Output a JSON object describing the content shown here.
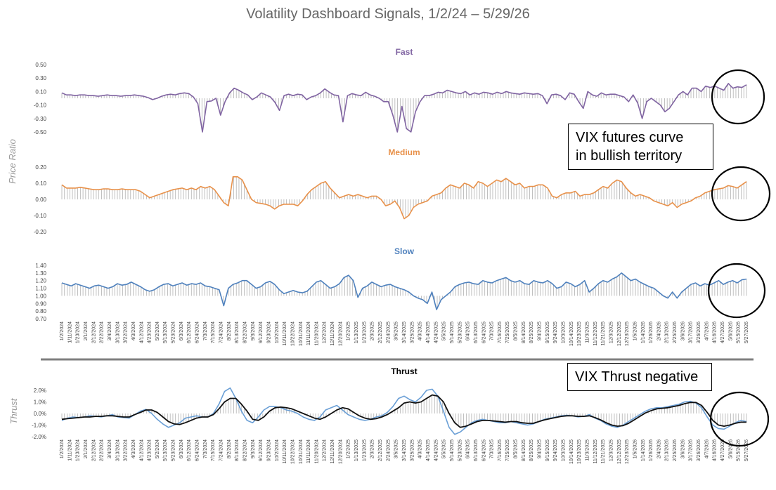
{
  "title": "Volatility Dashboard Signals, 1/2/24 – 5/29/26",
  "y_axis_labels": {
    "upper": "Price Ratio",
    "lower": "Thrust"
  },
  "callouts": {
    "upper": [
      "VIX  futures  curve",
      "in bullish territory"
    ],
    "lower": "VIX Thrust negative"
  },
  "colors": {
    "fast": "#8064a2",
    "medium": "#e8914a",
    "slow": "#4f81bd",
    "thrust_blue": "#6a9fd6",
    "thrust_black": "#111111",
    "bars": "#b0b0b0",
    "divider": "#7f7f7f"
  },
  "date_labels": [
    "1/2/2024",
    "1/11/2024",
    "1/23/2024",
    "2/1/2024",
    "2/12/2024",
    "2/22/2024",
    "3/4/2024",
    "3/13/2024",
    "3/22/2024",
    "4/3/2024",
    "4/12/2024",
    "4/23/2024",
    "5/2/2024",
    "5/13/2024",
    "5/23/2024",
    "6/3/2024",
    "6/12/2024",
    "6/24/2024",
    "7/3/2024",
    "7/15/2024",
    "7/24/2024",
    "8/2/2024",
    "8/13/2024",
    "8/22/2024",
    "9/3/2024",
    "9/12/2024",
    "9/23/2024",
    "10/2/2024",
    "10/11/2024",
    "10/22/2024",
    "10/31/2024",
    "11/11/2024",
    "11/20/2024",
    "12/2/2024",
    "12/11/2024",
    "12/20/2024",
    "1/2/2025",
    "1/13/2025",
    "1/23/2025",
    "2/3/2025",
    "2/12/2025",
    "2/24/2025",
    "3/5/2025",
    "3/14/2025",
    "3/25/2025",
    "4/3/2025",
    "4/14/2025",
    "4/24/2025",
    "5/5/2025",
    "5/14/2025",
    "5/23/2025",
    "6/4/2025",
    "6/13/2025",
    "6/24/2025",
    "7/3/2025",
    "7/16/2025",
    "7/25/2025",
    "8/5/2025",
    "8/14/2025",
    "8/25/2025",
    "9/4/2025",
    "9/15/2025",
    "9/24/2025",
    "10/3/2025",
    "10/14/2025",
    "10/23/2025",
    "11/3/2025",
    "11/12/2025",
    "11/21/2025",
    "12/3/2025",
    "12/12/2025",
    "12/23/2025",
    "1/5/2026",
    "1/14/2026",
    "1/26/2026",
    "2/4/2026",
    "2/13/2026",
    "2/25/2026",
    "3/6/2026",
    "3/17/2026",
    "3/26/2026",
    "4/7/2026",
    "4/16/2026",
    "4/27/2026",
    "5/6/2026",
    "5/15/2026",
    "5/27/2026"
  ],
  "chart_data": [
    {
      "type": "line",
      "title": "Fast",
      "ylabel": "Price Ratio",
      "yticks": [
        "0.50",
        "0.30",
        "0.10",
        "-0.10",
        "-0.30",
        "-0.50"
      ],
      "ylim": [
        -0.5,
        0.5
      ],
      "baseline": 0.0,
      "bars": true,
      "series": [
        {
          "x_start": "1/2/2024",
          "x_end": "5/29/2026",
          "values": [
            0.08,
            0.05,
            0.05,
            0.04,
            0.05,
            0.05,
            0.04,
            0.04,
            0.03,
            0.04,
            0.05,
            0.04,
            0.04,
            0.03,
            0.04,
            0.04,
            0.05,
            0.04,
            0.03,
            0.01,
            -0.02,
            0.0,
            0.03,
            0.05,
            0.06,
            0.05,
            0.07,
            0.08,
            0.07,
            0.02,
            -0.08,
            -0.5,
            -0.05,
            -0.04,
            0.0,
            -0.25,
            -0.05,
            0.08,
            0.15,
            0.12,
            0.08,
            0.05,
            -0.02,
            0.02,
            0.08,
            0.05,
            0.02,
            -0.06,
            -0.18,
            0.04,
            0.06,
            0.04,
            0.06,
            0.05,
            -0.02,
            0.02,
            0.04,
            0.08,
            0.14,
            0.09,
            0.05,
            0.04,
            -0.35,
            0.04,
            0.07,
            0.05,
            0.04,
            0.09,
            0.05,
            0.03,
            0.0,
            -0.05,
            -0.05,
            -0.25,
            -0.5,
            -0.12,
            -0.45,
            -0.5,
            -0.2,
            -0.05,
            0.04,
            0.04,
            0.06,
            0.09,
            0.08,
            0.12,
            0.1,
            0.08,
            0.07,
            0.1,
            0.05,
            0.08,
            0.06,
            0.09,
            0.08,
            0.06,
            0.09,
            0.07,
            0.1,
            0.08,
            0.07,
            0.06,
            0.08,
            0.07,
            0.06,
            0.07,
            0.04,
            -0.08,
            0.05,
            0.06,
            0.04,
            -0.02,
            0.08,
            0.06,
            -0.05,
            -0.15,
            0.1,
            0.05,
            0.03,
            0.08,
            0.05,
            0.06,
            0.06,
            0.04,
            0.02,
            -0.05,
            0.05,
            -0.07,
            -0.3,
            -0.05,
            0.0,
            -0.05,
            -0.1,
            -0.2,
            -0.15,
            -0.05,
            0.05,
            0.1,
            0.05,
            0.15,
            0.15,
            0.1,
            0.18,
            0.16,
            0.18,
            0.15,
            0.12,
            0.22,
            0.15,
            0.17,
            0.16,
            0.2
          ]
        }
      ]
    },
    {
      "type": "line",
      "title": "Medium",
      "ylabel": "Price Ratio",
      "yticks": [
        "0.20",
        "0.10",
        "0.00",
        "-0.10",
        "-0.20"
      ],
      "ylim": [
        -0.2,
        0.2
      ],
      "baseline": 0.0,
      "bars": true,
      "series": [
        {
          "x_start": "1/2/2024",
          "x_end": "5/29/2026",
          "values": [
            0.09,
            0.07,
            0.07,
            0.07,
            0.075,
            0.07,
            0.065,
            0.06,
            0.06,
            0.065,
            0.065,
            0.06,
            0.06,
            0.065,
            0.06,
            0.06,
            0.06,
            0.05,
            0.03,
            0.01,
            0.02,
            0.03,
            0.04,
            0.05,
            0.06,
            0.065,
            0.07,
            0.06,
            0.07,
            0.06,
            0.08,
            0.07,
            0.08,
            0.06,
            0.02,
            -0.02,
            -0.04,
            0.14,
            0.14,
            0.12,
            0.06,
            0.0,
            -0.02,
            -0.025,
            -0.03,
            -0.04,
            -0.06,
            -0.04,
            -0.03,
            -0.03,
            -0.03,
            -0.04,
            -0.01,
            0.03,
            0.06,
            0.08,
            0.1,
            0.11,
            0.07,
            0.04,
            0.01,
            0.02,
            0.03,
            0.02,
            0.03,
            0.02,
            0.01,
            0.02,
            0.02,
            0.0,
            -0.04,
            -0.03,
            -0.01,
            -0.05,
            -0.12,
            -0.1,
            -0.05,
            -0.03,
            -0.02,
            -0.01,
            0.02,
            0.03,
            0.04,
            0.07,
            0.09,
            0.08,
            0.07,
            0.1,
            0.09,
            0.07,
            0.11,
            0.1,
            0.08,
            0.1,
            0.12,
            0.11,
            0.13,
            0.11,
            0.09,
            0.1,
            0.07,
            0.08,
            0.08,
            0.09,
            0.09,
            0.07,
            0.02,
            0.01,
            0.03,
            0.04,
            0.04,
            0.05,
            0.02,
            0.03,
            0.03,
            0.04,
            0.06,
            0.08,
            0.07,
            0.1,
            0.12,
            0.11,
            0.07,
            0.04,
            0.02,
            0.03,
            0.02,
            0.01,
            -0.01,
            -0.02,
            -0.03,
            -0.04,
            -0.02,
            -0.05,
            -0.03,
            -0.02,
            -0.01,
            0.01,
            0.02,
            0.04,
            0.05,
            0.06,
            0.065,
            0.07,
            0.085,
            0.08,
            0.07,
            0.09,
            0.11
          ]
        }
      ]
    },
    {
      "type": "line",
      "title": "Slow",
      "ylabel": "Price Ratio",
      "yticks": [
        "1.40",
        "1.30",
        "1.20",
        "1.10",
        "1.00",
        "0.90",
        "0.80",
        "0.70"
      ],
      "ylim": [
        0.7,
        1.4
      ],
      "baseline": 1.0,
      "bars": true,
      "series": [
        {
          "x_start": "1/2/2024",
          "x_end": "5/29/2026",
          "values": [
            1.17,
            1.15,
            1.13,
            1.16,
            1.14,
            1.12,
            1.1,
            1.13,
            1.14,
            1.12,
            1.1,
            1.12,
            1.16,
            1.14,
            1.15,
            1.18,
            1.15,
            1.12,
            1.08,
            1.06,
            1.08,
            1.12,
            1.15,
            1.16,
            1.13,
            1.15,
            1.17,
            1.14,
            1.16,
            1.15,
            1.17,
            1.13,
            1.12,
            1.1,
            1.08,
            0.87,
            1.1,
            1.15,
            1.17,
            1.2,
            1.2,
            1.15,
            1.1,
            1.12,
            1.17,
            1.19,
            1.15,
            1.08,
            1.03,
            1.05,
            1.07,
            1.05,
            1.04,
            1.06,
            1.12,
            1.18,
            1.2,
            1.15,
            1.1,
            1.12,
            1.16,
            1.24,
            1.27,
            1.2,
            0.98,
            1.1,
            1.13,
            1.18,
            1.15,
            1.12,
            1.14,
            1.15,
            1.12,
            1.1,
            1.08,
            1.05,
            1.0,
            0.97,
            0.95,
            0.9,
            1.05,
            0.82,
            0.95,
            1.0,
            1.05,
            1.12,
            1.15,
            1.17,
            1.18,
            1.16,
            1.15,
            1.2,
            1.18,
            1.17,
            1.2,
            1.22,
            1.24,
            1.2,
            1.18,
            1.2,
            1.16,
            1.15,
            1.2,
            1.18,
            1.17,
            1.2,
            1.16,
            1.1,
            1.12,
            1.18,
            1.16,
            1.12,
            1.15,
            1.2,
            1.05,
            1.1,
            1.16,
            1.2,
            1.18,
            1.22,
            1.25,
            1.3,
            1.25,
            1.2,
            1.22,
            1.18,
            1.15,
            1.12,
            1.1,
            1.05,
            1.0,
            0.97,
            1.05,
            0.97,
            1.05,
            1.1,
            1.15,
            1.17,
            1.13,
            1.16,
            1.14,
            1.17,
            1.2,
            1.15,
            1.18,
            1.2,
            1.17,
            1.21,
            1.22
          ]
        }
      ]
    },
    {
      "type": "line",
      "title": "Thrust",
      "ylabel": "Thrust",
      "yticks": [
        "2.0%",
        "1.0%",
        "0.0%",
        "-1.0%",
        "-2.0%"
      ],
      "ylim": [
        -2.0,
        2.0
      ],
      "baseline": 0.0,
      "bars": true,
      "series": [
        {
          "color_key": "thrust_blue",
          "x_start": "1/2/2024",
          "x_end": "5/29/2026",
          "values": [
            -0.6,
            -0.4,
            -0.3,
            -0.35,
            -0.3,
            -0.2,
            -0.25,
            -0.3,
            -0.2,
            -0.1,
            -0.3,
            -0.35,
            -0.4,
            -0.1,
            0.2,
            0.35,
            0.0,
            -0.5,
            -0.9,
            -1.2,
            -1.0,
            -0.8,
            -0.4,
            -0.3,
            -0.2,
            -0.3,
            -0.3,
            0.0,
            0.8,
            1.9,
            2.2,
            1.3,
            0.2,
            -0.6,
            -0.8,
            -0.3,
            0.3,
            0.6,
            0.6,
            0.5,
            0.3,
            0.2,
            0.0,
            -0.3,
            -0.5,
            -0.6,
            -0.3,
            0.3,
            0.5,
            0.7,
            0.3,
            -0.1,
            -0.3,
            -0.5,
            -0.6,
            -0.5,
            -0.3,
            -0.2,
            0.1,
            0.6,
            1.3,
            1.5,
            1.2,
            1.0,
            1.4,
            2.0,
            2.1,
            1.5,
            0.2,
            -1.2,
            -1.8,
            -1.6,
            -1.2,
            -0.8,
            -0.6,
            -0.5,
            -0.6,
            -0.7,
            -0.8,
            -0.8,
            -0.7,
            -0.8,
            -0.9,
            -1.0,
            -0.9,
            -0.7,
            -0.5,
            -0.4,
            -0.3,
            -0.2,
            -0.15,
            -0.2,
            -0.3,
            -0.25,
            -0.1,
            -0.4,
            -0.6,
            -0.9,
            -1.1,
            -1.2,
            -1.0,
            -0.7,
            -0.4,
            -0.1,
            0.2,
            0.4,
            0.5,
            0.5,
            0.6,
            0.7,
            0.8,
            1.0,
            1.05,
            0.9,
            0.5,
            -0.3,
            -1.0,
            -1.3,
            -1.35,
            -1.1,
            -0.8,
            -0.6,
            -0.7
          ]
        },
        {
          "color_key": "thrust_black",
          "x_start": "1/2/2024",
          "x_end": "5/29/2026",
          "values": [
            -0.5,
            -0.45,
            -0.4,
            -0.35,
            -0.3,
            -0.3,
            -0.25,
            -0.25,
            -0.2,
            -0.2,
            -0.25,
            -0.3,
            -0.3,
            -0.1,
            0.1,
            0.3,
            0.3,
            0.1,
            -0.3,
            -0.7,
            -0.9,
            -0.95,
            -0.8,
            -0.6,
            -0.4,
            -0.3,
            -0.3,
            -0.1,
            0.4,
            1.0,
            1.3,
            1.3,
            0.8,
            0.2,
            -0.5,
            -0.6,
            -0.3,
            0.2,
            0.5,
            0.55,
            0.5,
            0.4,
            0.2,
            0.0,
            -0.2,
            -0.4,
            -0.5,
            -0.3,
            0.0,
            0.3,
            0.5,
            0.4,
            0.1,
            -0.2,
            -0.4,
            -0.5,
            -0.45,
            -0.3,
            -0.1,
            0.2,
            0.5,
            0.9,
            1.0,
            0.9,
            1.0,
            1.3,
            1.6,
            1.5,
            1.0,
            0.0,
            -0.8,
            -1.2,
            -1.1,
            -0.9,
            -0.7,
            -0.6,
            -0.6,
            -0.65,
            -0.7,
            -0.75,
            -0.7,
            -0.7,
            -0.8,
            -0.85,
            -0.85,
            -0.7,
            -0.55,
            -0.45,
            -0.35,
            -0.25,
            -0.2,
            -0.2,
            -0.25,
            -0.25,
            -0.2,
            -0.35,
            -0.55,
            -0.8,
            -1.0,
            -1.1,
            -1.05,
            -0.85,
            -0.55,
            -0.25,
            0.05,
            0.25,
            0.4,
            0.45,
            0.5,
            0.6,
            0.7,
            0.85,
            0.95,
            0.95,
            0.7,
            0.1,
            -0.6,
            -1.0,
            -1.1,
            -1.0,
            -0.85,
            -0.75,
            -0.75
          ]
        }
      ]
    }
  ]
}
